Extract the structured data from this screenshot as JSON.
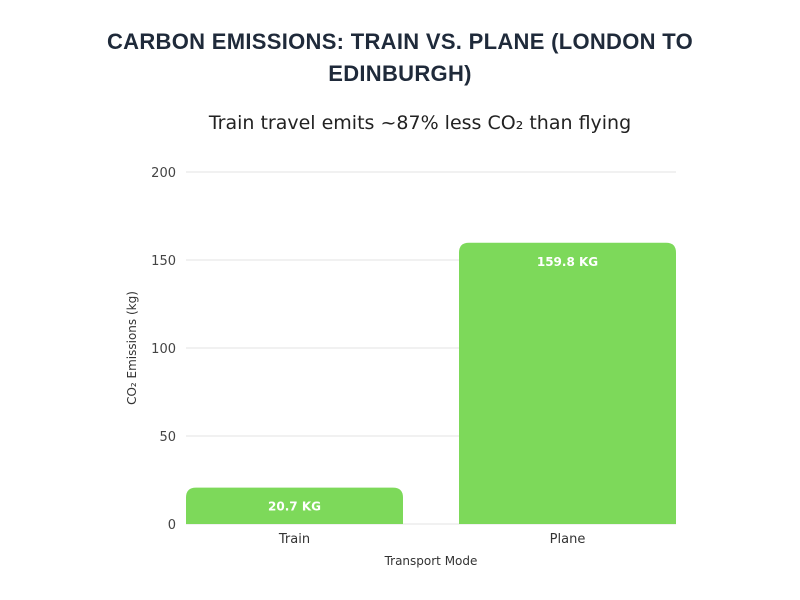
{
  "chart_data": {
    "type": "bar",
    "title": "CARBON EMISSIONS: TRAIN VS. PLANE (LONDON TO EDINBURGH)",
    "subtitle": "Train travel emits ~87% less CO₂ than flying",
    "xlabel": "Transport Mode",
    "ylabel": "CO₂ Emissions (kg)",
    "categories": [
      "Train",
      "Plane"
    ],
    "values": [
      20.7,
      159.8
    ],
    "data_labels": [
      "20.7 KG",
      "159.8 KG"
    ],
    "ylim": [
      0,
      200
    ],
    "yticks": [
      0,
      50,
      100,
      150,
      200
    ],
    "ytick_labels": [
      "0",
      "50",
      "100",
      "150",
      "200"
    ],
    "grid": true,
    "bar_color": "#7dd95a",
    "grid_color": "#e3e3e3"
  }
}
